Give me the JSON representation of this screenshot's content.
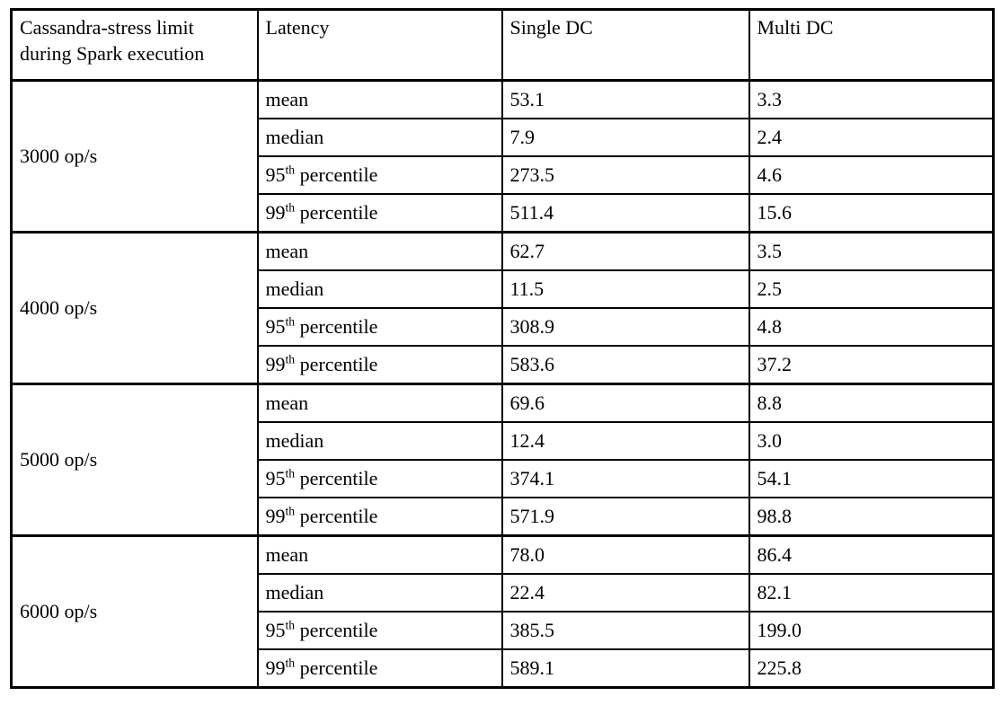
{
  "table": {
    "header": {
      "stress_limit": "Cassandra-stress limit during Spark execution",
      "latency": "Latency",
      "single_dc": "Single DC",
      "multi_dc": "Multi DC"
    },
    "groups": [
      {
        "rate": "3000 op/s",
        "rows": [
          {
            "latency": {
              "pre": "mean",
              "sup": "",
              "post": ""
            },
            "single_dc": "53.1",
            "multi_dc": "3.3"
          },
          {
            "latency": {
              "pre": "median",
              "sup": "",
              "post": ""
            },
            "single_dc": "7.9",
            "multi_dc": "2.4"
          },
          {
            "latency": {
              "pre": "95",
              "sup": "th",
              "post": " percentile"
            },
            "single_dc": "273.5",
            "multi_dc": "4.6"
          },
          {
            "latency": {
              "pre": "99",
              "sup": "th",
              "post": " percentile"
            },
            "single_dc": "511.4",
            "multi_dc": "15.6"
          }
        ]
      },
      {
        "rate": "4000 op/s",
        "rows": [
          {
            "latency": {
              "pre": "mean",
              "sup": "",
              "post": ""
            },
            "single_dc": "62.7",
            "multi_dc": "3.5"
          },
          {
            "latency": {
              "pre": "median",
              "sup": "",
              "post": ""
            },
            "single_dc": "11.5",
            "multi_dc": "2.5"
          },
          {
            "latency": {
              "pre": "95",
              "sup": "th",
              "post": " percentile"
            },
            "single_dc": "308.9",
            "multi_dc": "4.8"
          },
          {
            "latency": {
              "pre": "99",
              "sup": "th",
              "post": " percentile"
            },
            "single_dc": "583.6",
            "multi_dc": "37.2"
          }
        ]
      },
      {
        "rate": "5000 op/s",
        "rows": [
          {
            "latency": {
              "pre": "mean",
              "sup": "",
              "post": ""
            },
            "single_dc": "69.6",
            "multi_dc": "8.8"
          },
          {
            "latency": {
              "pre": "median",
              "sup": "",
              "post": ""
            },
            "single_dc": "12.4",
            "multi_dc": "3.0"
          },
          {
            "latency": {
              "pre": "95",
              "sup": "th",
              "post": " percentile"
            },
            "single_dc": "374.1",
            "multi_dc": "54.1"
          },
          {
            "latency": {
              "pre": "99",
              "sup": "th",
              "post": " percentile"
            },
            "single_dc": "571.9",
            "multi_dc": "98.8"
          }
        ]
      },
      {
        "rate": "6000 op/s",
        "rows": [
          {
            "latency": {
              "pre": "mean",
              "sup": "",
              "post": ""
            },
            "single_dc": "78.0",
            "multi_dc": "86.4"
          },
          {
            "latency": {
              "pre": "median",
              "sup": "",
              "post": ""
            },
            "single_dc": "22.4",
            "multi_dc": "82.1"
          },
          {
            "latency": {
              "pre": "95",
              "sup": "th",
              "post": " percentile"
            },
            "single_dc": "385.5",
            "multi_dc": "199.0"
          },
          {
            "latency": {
              "pre": "99",
              "sup": "th",
              "post": " percentile"
            },
            "single_dc": "589.1",
            "multi_dc": "225.8"
          }
        ]
      }
    ]
  }
}
